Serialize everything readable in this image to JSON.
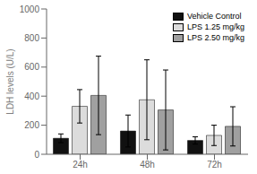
{
  "chart_data": {
    "type": "bar",
    "categories": [
      "24h",
      "48h",
      "72h"
    ],
    "series": [
      {
        "name": "Vehicle Control",
        "color": "#111111",
        "values": [
          110,
          160,
          95
        ],
        "errors": [
          30,
          110,
          25
        ]
      },
      {
        "name": "LPS 1.25 mg/kg",
        "color": "#dcdcdc",
        "values": [
          330,
          375,
          130
        ],
        "errors": [
          115,
          275,
          70
        ]
      },
      {
        "name": "LPS 2.50 mg/kg",
        "color": "#a0a0a0",
        "values": [
          405,
          305,
          192
        ],
        "errors": [
          270,
          275,
          135
        ]
      }
    ],
    "ylabel": "LDH levels (U/L)",
    "ylim": [
      0,
      1000
    ],
    "yticks": [
      0,
      200,
      400,
      600,
      800,
      1000
    ],
    "grid": false,
    "legend": "upper right"
  }
}
